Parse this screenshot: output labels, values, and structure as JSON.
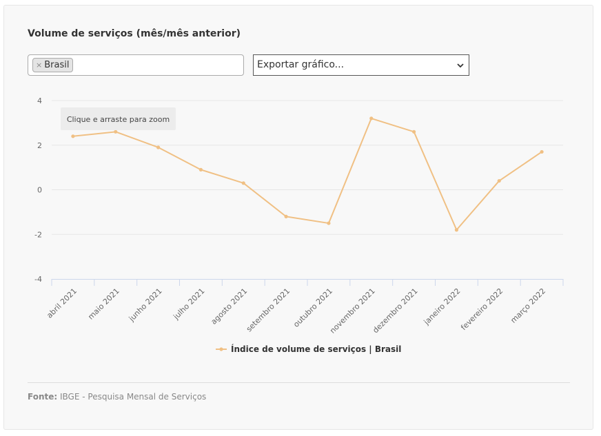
{
  "title": "Volume de serviços (mês/mês anterior)",
  "filter": {
    "remove_glyph": "×",
    "selected_tag": "Brasil"
  },
  "export": {
    "selected": "Exportar gráfico..."
  },
  "tooltip": "Clique e arraste para zoom",
  "source": {
    "label": "Fonte:",
    "text": "IBGE - Pesquisa Mensal de Serviços"
  },
  "colors": {
    "series": "#f0c084",
    "grid": "#e6e6e6",
    "axis": "#ccd6eb"
  },
  "chart_data": {
    "type": "line",
    "categories": [
      "abril 2021",
      "maio 2021",
      "junho 2021",
      "julho 2021",
      "agosto 2021",
      "setembro 2021",
      "outubro 2021",
      "novembro 2021",
      "dezembro 2021",
      "janeiro 2022",
      "fevereiro 2022",
      "março 2022"
    ],
    "series": [
      {
        "name": "Índice de volume de serviços | Brasil",
        "values": [
          2.4,
          2.6,
          1.9,
          0.9,
          0.3,
          -1.2,
          -1.5,
          3.2,
          2.6,
          -1.8,
          0.4,
          1.7
        ]
      }
    ],
    "yticks": [
      4,
      2,
      0,
      -2,
      -4
    ],
    "ylim": [
      -4,
      4
    ],
    "grid": true,
    "legend": "bottom-center",
    "xlabel": "",
    "ylabel": ""
  }
}
